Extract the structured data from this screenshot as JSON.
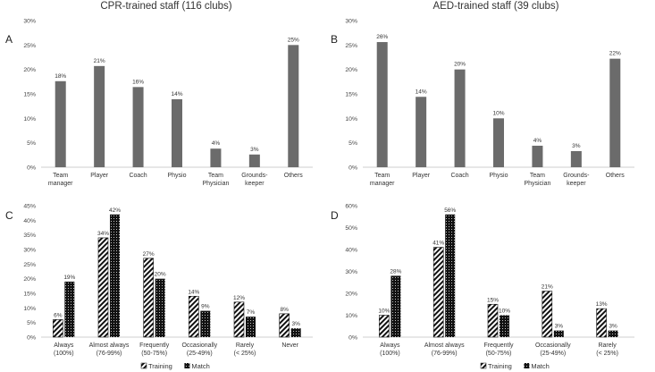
{
  "chart_data": [
    {
      "id": "A",
      "type": "bar",
      "panel_label": "A",
      "title": "CPR-trained staff (116 clubs)",
      "categories": [
        [
          "Team",
          "manager"
        ],
        [
          "Player"
        ],
        [
          "Coach"
        ],
        [
          "Physio"
        ],
        [
          "Team",
          "Physician"
        ],
        [
          "Grounds-",
          "keeper"
        ],
        [
          "Others"
        ]
      ],
      "values": [
        18,
        21,
        16,
        14,
        4,
        3,
        25
      ],
      "value_labels": [
        "18%",
        "21%",
        "16%",
        "14%",
        "4%",
        "3%",
        "25%"
      ],
      "yticks": [
        "0%",
        "5%",
        "10%",
        "15%",
        "20%",
        "25%",
        "30%"
      ],
      "ylim": [
        0,
        30
      ],
      "exact_heights": [
        17.6,
        20.7,
        16.4,
        13.9,
        3.8,
        2.6,
        25.0
      ],
      "color": "#6b6b6b"
    },
    {
      "id": "B",
      "type": "bar",
      "panel_label": "B",
      "title": "AED-trained staff (39 clubs)",
      "categories": [
        [
          "Team",
          "manager"
        ],
        [
          "Player"
        ],
        [
          "Coach"
        ],
        [
          "Physio"
        ],
        [
          "Team",
          "Physician"
        ],
        [
          "Grounds-",
          "keeper"
        ],
        [
          "Others"
        ]
      ],
      "values": [
        26,
        14,
        20,
        10,
        4,
        3,
        22
      ],
      "value_labels": [
        "26%",
        "14%",
        "20%",
        "10%",
        "4%",
        "3%",
        "22%"
      ],
      "yticks": [
        "0%",
        "5%",
        "10%",
        "15%",
        "20%",
        "25%",
        "30%"
      ],
      "ylim": [
        0,
        30
      ],
      "exact_heights": [
        25.6,
        14.4,
        20.0,
        10.0,
        4.4,
        3.3,
        22.2
      ],
      "color": "#6b6b6b"
    },
    {
      "id": "C",
      "type": "bar",
      "panel_label": "C",
      "categories": [
        [
          "Always",
          "(100%)"
        ],
        [
          "Almost always",
          "(76-99%)"
        ],
        [
          "Frequently",
          "(50-75%)"
        ],
        [
          "Occasionally",
          "(25-49%)"
        ],
        [
          "Rarely",
          "(< 25%)"
        ],
        [
          "Never"
        ]
      ],
      "series": [
        {
          "name": "Training",
          "values": [
            6,
            34,
            27,
            14,
            12,
            8
          ],
          "value_labels": [
            "6%",
            "34%",
            "27%",
            "14%",
            "12%",
            "8%"
          ]
        },
        {
          "name": "Match",
          "values": [
            19,
            42,
            20,
            9,
            7,
            3
          ],
          "value_labels": [
            "19%",
            "42%",
            "20%",
            "9%",
            "7%",
            "3%"
          ]
        }
      ],
      "yticks": [
        "0%",
        "5%",
        "10%",
        "15%",
        "20%",
        "25%",
        "30%",
        "35%",
        "40%",
        "45%"
      ],
      "ylim": [
        0,
        45
      ]
    },
    {
      "id": "D",
      "type": "bar",
      "panel_label": "D",
      "categories": [
        [
          "Always",
          "(100%)"
        ],
        [
          "Almost always",
          "(76-99%)"
        ],
        [
          "Frequently",
          "(50-75%)"
        ],
        [
          "Occasionally",
          "(25-49%)"
        ],
        [
          "Rarely",
          "(< 25%)"
        ]
      ],
      "series": [
        {
          "name": "Training",
          "values": [
            10,
            41,
            15,
            21,
            13
          ],
          "value_labels": [
            "10%",
            "41%",
            "15%",
            "21%",
            "13%"
          ]
        },
        {
          "name": "Match",
          "values": [
            28,
            56,
            10,
            3,
            3
          ],
          "value_labels": [
            "28%",
            "56%",
            "10%",
            "3%",
            "3%"
          ]
        }
      ],
      "yticks": [
        "0%",
        "10%",
        "20%",
        "30%",
        "40%",
        "50%",
        "60%"
      ],
      "ylim": [
        0,
        60
      ]
    }
  ]
}
